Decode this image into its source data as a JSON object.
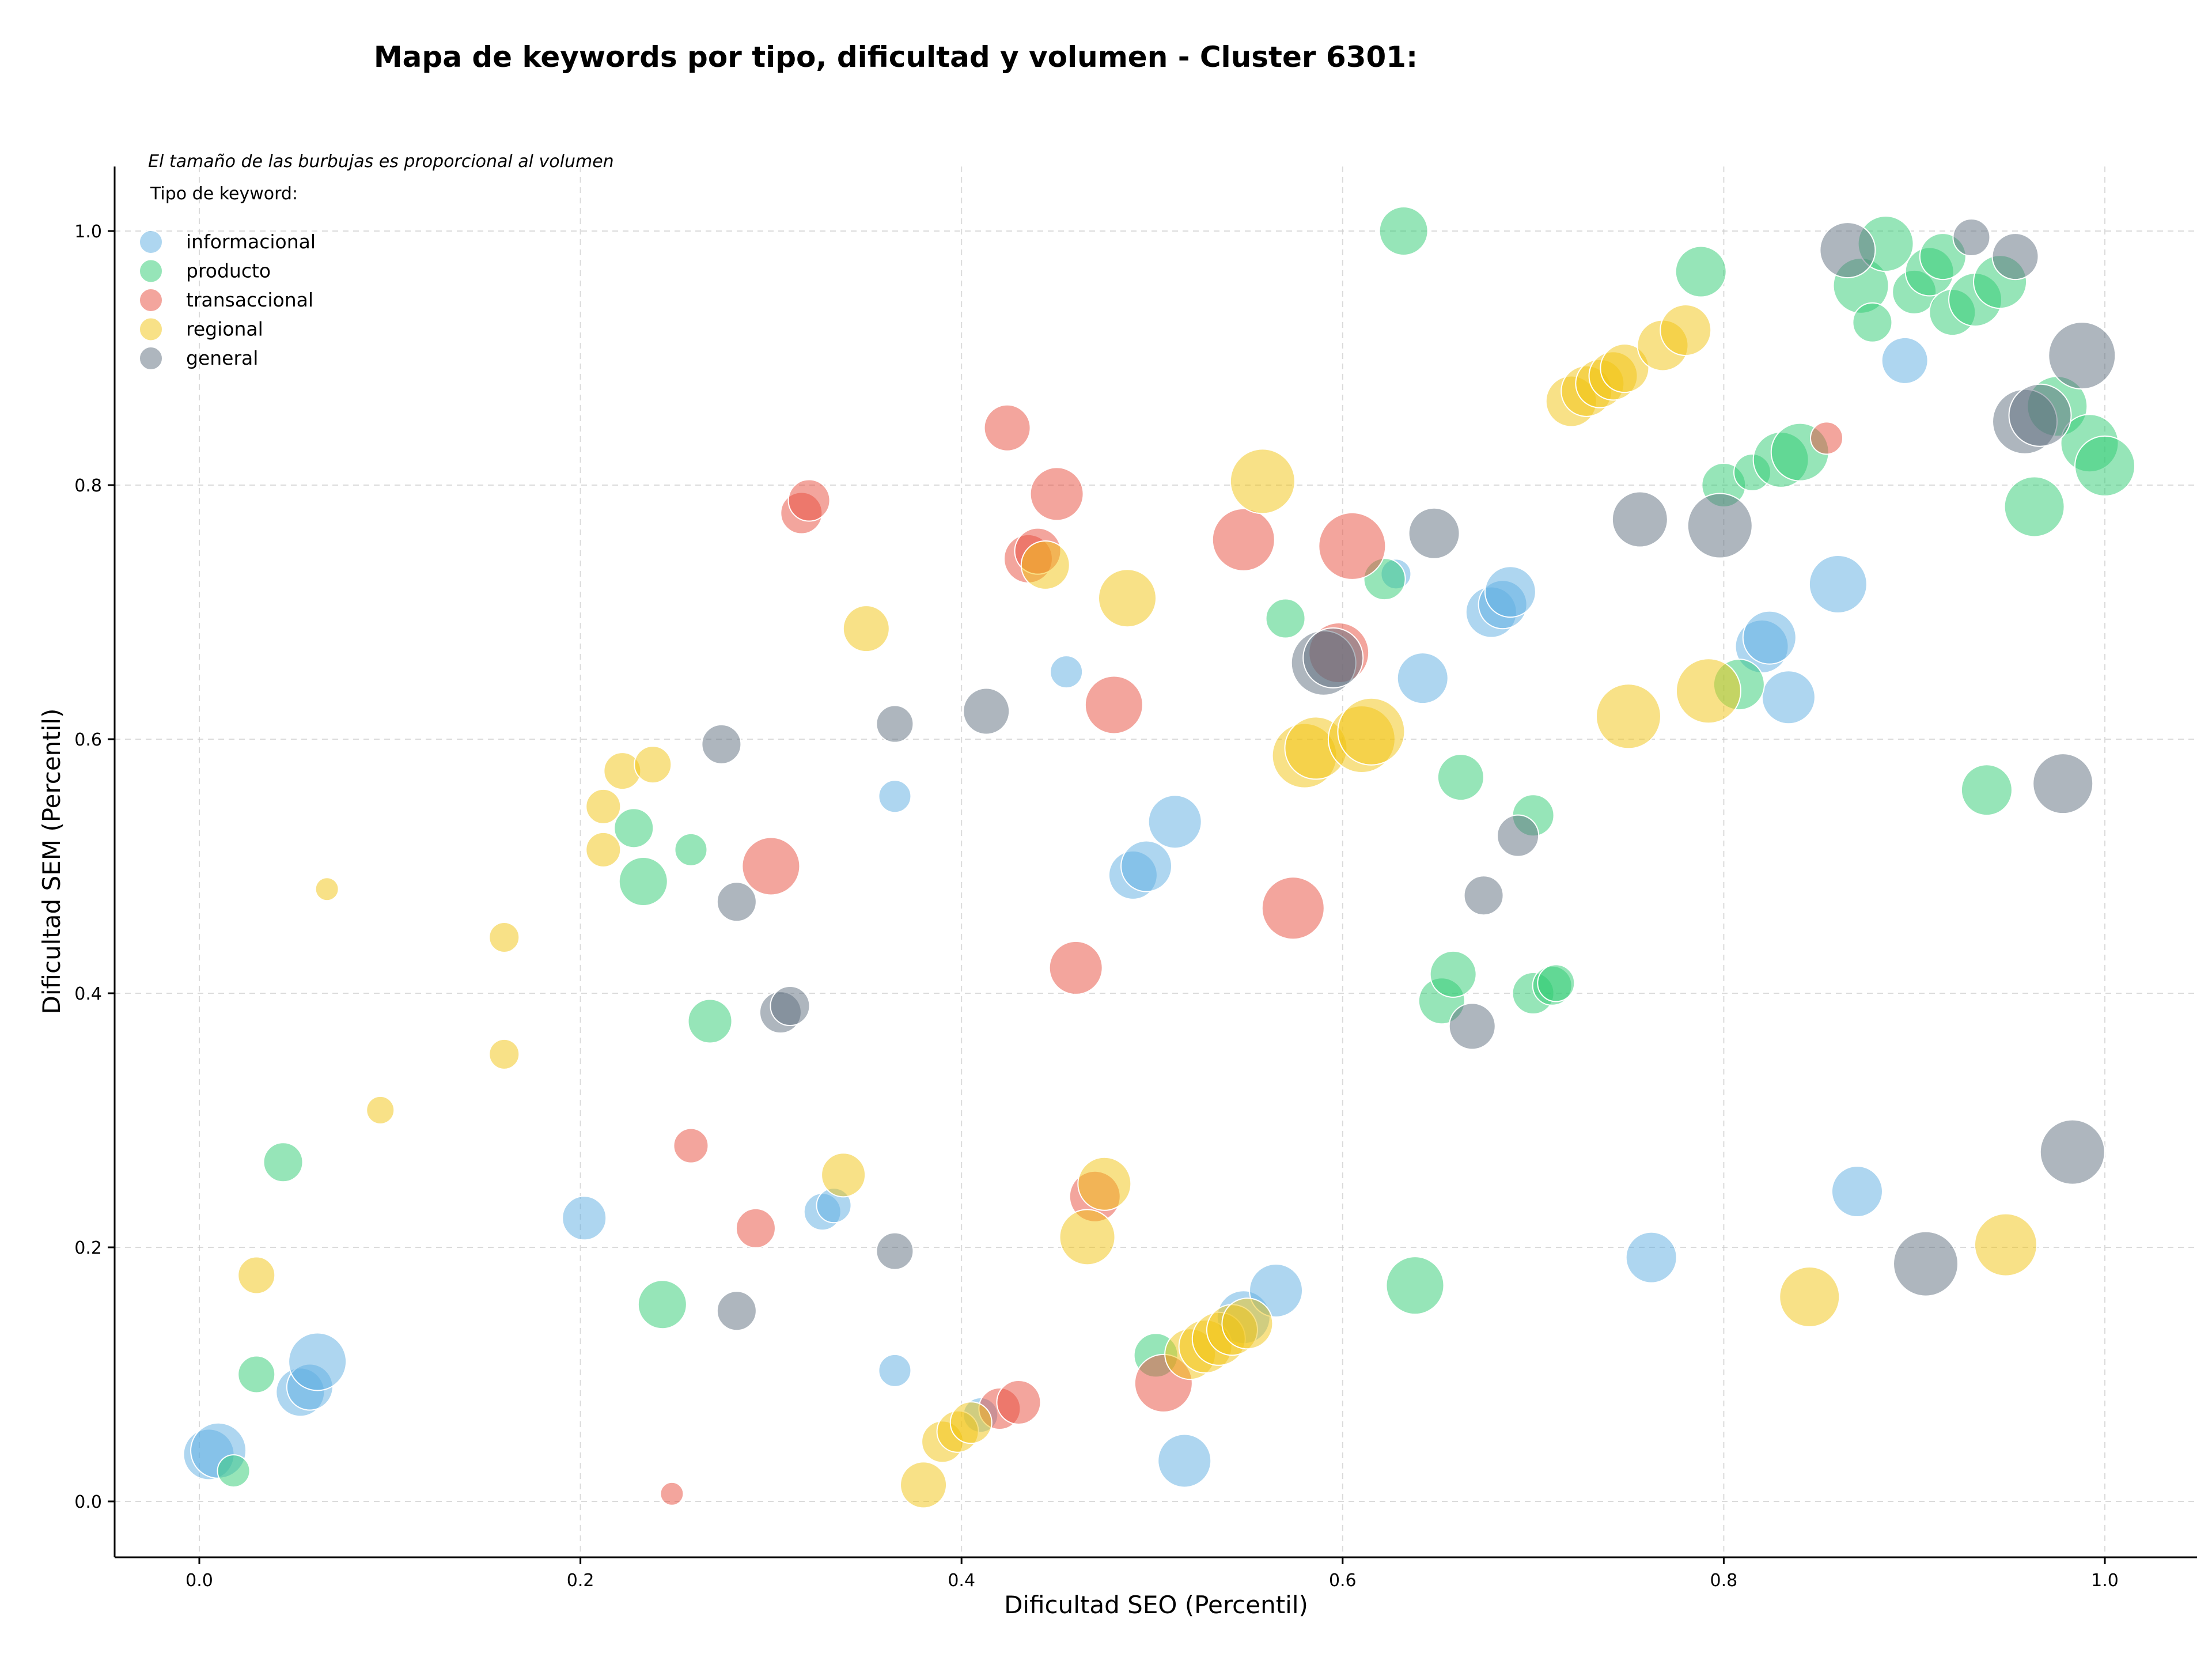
{
  "chart_data": {
    "type": "scatter",
    "title": "Mapa de keywords por tipo, dificultad y volumen - Cluster 6301:",
    "xlabel": "Dificultad SEO (Percentil)",
    "ylabel": "Dificultad SEM (Percentil)",
    "xlim": [
      -0.045,
      1.05
    ],
    "ylim": [
      -0.045,
      1.05
    ],
    "x_ticks": [
      0.0,
      0.2,
      0.4,
      0.6,
      0.8,
      1.0
    ],
    "y_ticks": [
      0.0,
      0.2,
      0.4,
      0.6,
      0.8,
      1.0
    ],
    "x_tick_labels": [
      "0.0",
      "0.2",
      "0.4",
      "0.6",
      "0.8",
      "1.0"
    ],
    "y_tick_labels": [
      "0.0",
      "0.2",
      "0.4",
      "0.6",
      "0.8",
      "1.0"
    ],
    "grid": true,
    "note": "El tamaño de las burbujas es proporcional al volumen",
    "legend_title": "Tipo de keyword:",
    "legend_position": "top-left",
    "size_note": "r values are relative bubble sizes (proportional to volume)",
    "series": [
      {
        "name": "informacional",
        "color": "#5dade2",
        "points": [
          {
            "x": 0.005,
            "y": 0.037,
            "r": 44
          },
          {
            "x": 0.01,
            "y": 0.04,
            "r": 48
          },
          {
            "x": 0.053,
            "y": 0.086,
            "r": 42
          },
          {
            "x": 0.058,
            "y": 0.09,
            "r": 40
          },
          {
            "x": 0.062,
            "y": 0.11,
            "r": 50
          },
          {
            "x": 0.202,
            "y": 0.223,
            "r": 38
          },
          {
            "x": 0.327,
            "y": 0.228,
            "r": 32
          },
          {
            "x": 0.333,
            "y": 0.233,
            "r": 30
          },
          {
            "x": 0.365,
            "y": 0.555,
            "r": 28
          },
          {
            "x": 0.365,
            "y": 0.103,
            "r": 28
          },
          {
            "x": 0.41,
            "y": 0.068,
            "r": 30
          },
          {
            "x": 0.455,
            "y": 0.653,
            "r": 28
          },
          {
            "x": 0.49,
            "y": 0.493,
            "r": 42
          },
          {
            "x": 0.497,
            "y": 0.5,
            "r": 44
          },
          {
            "x": 0.512,
            "y": 0.535,
            "r": 46
          },
          {
            "x": 0.517,
            "y": 0.032,
            "r": 46
          },
          {
            "x": 0.548,
            "y": 0.145,
            "r": 46
          },
          {
            "x": 0.565,
            "y": 0.166,
            "r": 46
          },
          {
            "x": 0.628,
            "y": 0.73,
            "r": 26
          },
          {
            "x": 0.642,
            "y": 0.648,
            "r": 44
          },
          {
            "x": 0.678,
            "y": 0.7,
            "r": 44
          },
          {
            "x": 0.684,
            "y": 0.706,
            "r": 42
          },
          {
            "x": 0.688,
            "y": 0.716,
            "r": 44
          },
          {
            "x": 0.762,
            "y": 0.192,
            "r": 44
          },
          {
            "x": 0.82,
            "y": 0.673,
            "r": 46
          },
          {
            "x": 0.824,
            "y": 0.68,
            "r": 46
          },
          {
            "x": 0.834,
            "y": 0.633,
            "r": 46
          },
          {
            "x": 0.86,
            "y": 0.722,
            "r": 50
          },
          {
            "x": 0.87,
            "y": 0.244,
            "r": 44
          },
          {
            "x": 0.895,
            "y": 0.898,
            "r": 40
          }
        ]
      },
      {
        "name": "producto",
        "color": "#2ecc71",
        "points": [
          {
            "x": 0.018,
            "y": 0.024,
            "r": 28
          },
          {
            "x": 0.03,
            "y": 0.1,
            "r": 32
          },
          {
            "x": 0.044,
            "y": 0.267,
            "r": 34
          },
          {
            "x": 0.228,
            "y": 0.53,
            "r": 34
          },
          {
            "x": 0.233,
            "y": 0.488,
            "r": 42
          },
          {
            "x": 0.243,
            "y": 0.155,
            "r": 42
          },
          {
            "x": 0.258,
            "y": 0.513,
            "r": 28
          },
          {
            "x": 0.268,
            "y": 0.378,
            "r": 38
          },
          {
            "x": 0.502,
            "y": 0.115,
            "r": 38
          },
          {
            "x": 0.57,
            "y": 0.695,
            "r": 34
          },
          {
            "x": 0.622,
            "y": 0.726,
            "r": 36
          },
          {
            "x": 0.632,
            "y": 1.0,
            "r": 42
          },
          {
            "x": 0.638,
            "y": 0.17,
            "r": 50
          },
          {
            "x": 0.652,
            "y": 0.394,
            "r": 40
          },
          {
            "x": 0.658,
            "y": 0.415,
            "r": 40
          },
          {
            "x": 0.662,
            "y": 0.57,
            "r": 40
          },
          {
            "x": 0.7,
            "y": 0.54,
            "r": 36
          },
          {
            "x": 0.7,
            "y": 0.4,
            "r": 36
          },
          {
            "x": 0.71,
            "y": 0.406,
            "r": 34
          },
          {
            "x": 0.712,
            "y": 0.408,
            "r": 32
          },
          {
            "x": 0.788,
            "y": 0.968,
            "r": 44
          },
          {
            "x": 0.8,
            "y": 0.8,
            "r": 38
          },
          {
            "x": 0.808,
            "y": 0.643,
            "r": 44
          },
          {
            "x": 0.815,
            "y": 0.81,
            "r": 32
          },
          {
            "x": 0.83,
            "y": 0.82,
            "r": 48
          },
          {
            "x": 0.84,
            "y": 0.826,
            "r": 50
          },
          {
            "x": 0.872,
            "y": 0.957,
            "r": 48
          },
          {
            "x": 0.878,
            "y": 0.928,
            "r": 34
          },
          {
            "x": 0.885,
            "y": 0.99,
            "r": 48
          },
          {
            "x": 0.9,
            "y": 0.952,
            "r": 38
          },
          {
            "x": 0.908,
            "y": 0.968,
            "r": 42
          },
          {
            "x": 0.915,
            "y": 0.98,
            "r": 40
          },
          {
            "x": 0.92,
            "y": 0.936,
            "r": 40
          },
          {
            "x": 0.932,
            "y": 0.946,
            "r": 46
          },
          {
            "x": 0.938,
            "y": 0.56,
            "r": 44
          },
          {
            "x": 0.945,
            "y": 0.96,
            "r": 46
          },
          {
            "x": 0.963,
            "y": 0.783,
            "r": 52
          },
          {
            "x": 0.975,
            "y": 0.862,
            "r": 52
          },
          {
            "x": 0.992,
            "y": 0.833,
            "r": 50
          },
          {
            "x": 1.0,
            "y": 0.815,
            "r": 52
          }
        ]
      },
      {
        "name": "transaccional",
        "color": "#e74c3c",
        "points": [
          {
            "x": 0.248,
            "y": 0.006,
            "r": 20
          },
          {
            "x": 0.258,
            "y": 0.28,
            "r": 30
          },
          {
            "x": 0.292,
            "y": 0.215,
            "r": 34
          },
          {
            "x": 0.3,
            "y": 0.5,
            "r": 50
          },
          {
            "x": 0.316,
            "y": 0.778,
            "r": 36
          },
          {
            "x": 0.32,
            "y": 0.788,
            "r": 36
          },
          {
            "x": 0.42,
            "y": 0.073,
            "r": 36
          },
          {
            "x": 0.424,
            "y": 0.845,
            "r": 40
          },
          {
            "x": 0.43,
            "y": 0.078,
            "r": 38
          },
          {
            "x": 0.435,
            "y": 0.742,
            "r": 42
          },
          {
            "x": 0.44,
            "y": 0.748,
            "r": 40
          },
          {
            "x": 0.45,
            "y": 0.793,
            "r": 46
          },
          {
            "x": 0.46,
            "y": 0.42,
            "r": 46
          },
          {
            "x": 0.47,
            "y": 0.24,
            "r": 44
          },
          {
            "x": 0.48,
            "y": 0.627,
            "r": 50
          },
          {
            "x": 0.506,
            "y": 0.093,
            "r": 50
          },
          {
            "x": 0.548,
            "y": 0.757,
            "r": 54
          },
          {
            "x": 0.574,
            "y": 0.467,
            "r": 54
          },
          {
            "x": 0.598,
            "y": 0.668,
            "r": 52
          },
          {
            "x": 0.605,
            "y": 0.752,
            "r": 58
          },
          {
            "x": 0.854,
            "y": 0.837,
            "r": 28
          }
        ]
      },
      {
        "name": "regional",
        "color": "#f1c40f",
        "points": [
          {
            "x": 0.067,
            "y": 0.482,
            "r": 20
          },
          {
            "x": 0.03,
            "y": 0.178,
            "r": 32
          },
          {
            "x": 0.095,
            "y": 0.308,
            "r": 24
          },
          {
            "x": 0.16,
            "y": 0.444,
            "r": 26
          },
          {
            "x": 0.16,
            "y": 0.352,
            "r": 26
          },
          {
            "x": 0.212,
            "y": 0.547,
            "r": 30
          },
          {
            "x": 0.212,
            "y": 0.513,
            "r": 30
          },
          {
            "x": 0.222,
            "y": 0.575,
            "r": 32
          },
          {
            "x": 0.238,
            "y": 0.58,
            "r": 32
          },
          {
            "x": 0.338,
            "y": 0.257,
            "r": 38
          },
          {
            "x": 0.35,
            "y": 0.687,
            "r": 40
          },
          {
            "x": 0.38,
            "y": 0.013,
            "r": 40
          },
          {
            "x": 0.39,
            "y": 0.047,
            "r": 36
          },
          {
            "x": 0.398,
            "y": 0.055,
            "r": 36
          },
          {
            "x": 0.405,
            "y": 0.062,
            "r": 36
          },
          {
            "x": 0.444,
            "y": 0.737,
            "r": 42
          },
          {
            "x": 0.466,
            "y": 0.208,
            "r": 48
          },
          {
            "x": 0.475,
            "y": 0.25,
            "r": 46
          },
          {
            "x": 0.487,
            "y": 0.711,
            "r": 50
          },
          {
            "x": 0.52,
            "y": 0.116,
            "r": 44
          },
          {
            "x": 0.528,
            "y": 0.122,
            "r": 46
          },
          {
            "x": 0.535,
            "y": 0.128,
            "r": 46
          },
          {
            "x": 0.542,
            "y": 0.135,
            "r": 44
          },
          {
            "x": 0.55,
            "y": 0.14,
            "r": 44
          },
          {
            "x": 0.558,
            "y": 0.803,
            "r": 56
          },
          {
            "x": 0.58,
            "y": 0.587,
            "r": 56
          },
          {
            "x": 0.586,
            "y": 0.593,
            "r": 54
          },
          {
            "x": 0.61,
            "y": 0.6,
            "r": 58
          },
          {
            "x": 0.615,
            "y": 0.606,
            "r": 58
          },
          {
            "x": 0.72,
            "y": 0.866,
            "r": 44
          },
          {
            "x": 0.728,
            "y": 0.874,
            "r": 44
          },
          {
            "x": 0.735,
            "y": 0.88,
            "r": 42
          },
          {
            "x": 0.742,
            "y": 0.886,
            "r": 42
          },
          {
            "x": 0.748,
            "y": 0.892,
            "r": 42
          },
          {
            "x": 0.75,
            "y": 0.618,
            "r": 56
          },
          {
            "x": 0.768,
            "y": 0.91,
            "r": 44
          },
          {
            "x": 0.78,
            "y": 0.922,
            "r": 44
          },
          {
            "x": 0.792,
            "y": 0.638,
            "r": 56
          },
          {
            "x": 0.845,
            "y": 0.161,
            "r": 52
          },
          {
            "x": 0.948,
            "y": 0.202,
            "r": 54
          }
        ]
      },
      {
        "name": "general",
        "color": "#5d6d7e",
        "points": [
          {
            "x": 0.274,
            "y": 0.596,
            "r": 34
          },
          {
            "x": 0.282,
            "y": 0.472,
            "r": 34
          },
          {
            "x": 0.282,
            "y": 0.15,
            "r": 34
          },
          {
            "x": 0.305,
            "y": 0.385,
            "r": 36
          },
          {
            "x": 0.31,
            "y": 0.39,
            "r": 34
          },
          {
            "x": 0.365,
            "y": 0.612,
            "r": 32
          },
          {
            "x": 0.365,
            "y": 0.197,
            "r": 32
          },
          {
            "x": 0.413,
            "y": 0.622,
            "r": 40
          },
          {
            "x": 0.59,
            "y": 0.66,
            "r": 56
          },
          {
            "x": 0.595,
            "y": 0.664,
            "r": 52
          },
          {
            "x": 0.648,
            "y": 0.762,
            "r": 44
          },
          {
            "x": 0.668,
            "y": 0.374,
            "r": 40
          },
          {
            "x": 0.674,
            "y": 0.477,
            "r": 34
          },
          {
            "x": 0.692,
            "y": 0.524,
            "r": 36
          },
          {
            "x": 0.756,
            "y": 0.773,
            "r": 48
          },
          {
            "x": 0.798,
            "y": 0.768,
            "r": 56
          },
          {
            "x": 0.865,
            "y": 0.985,
            "r": 48
          },
          {
            "x": 0.906,
            "y": 0.187,
            "r": 56
          },
          {
            "x": 0.93,
            "y": 0.995,
            "r": 32
          },
          {
            "x": 0.953,
            "y": 0.98,
            "r": 40
          },
          {
            "x": 0.958,
            "y": 0.85,
            "r": 56
          },
          {
            "x": 0.966,
            "y": 0.855,
            "r": 54
          },
          {
            "x": 0.978,
            "y": 0.565,
            "r": 52
          },
          {
            "x": 0.983,
            "y": 0.275,
            "r": 56
          },
          {
            "x": 0.988,
            "y": 0.902,
            "r": 58
          }
        ]
      }
    ]
  }
}
